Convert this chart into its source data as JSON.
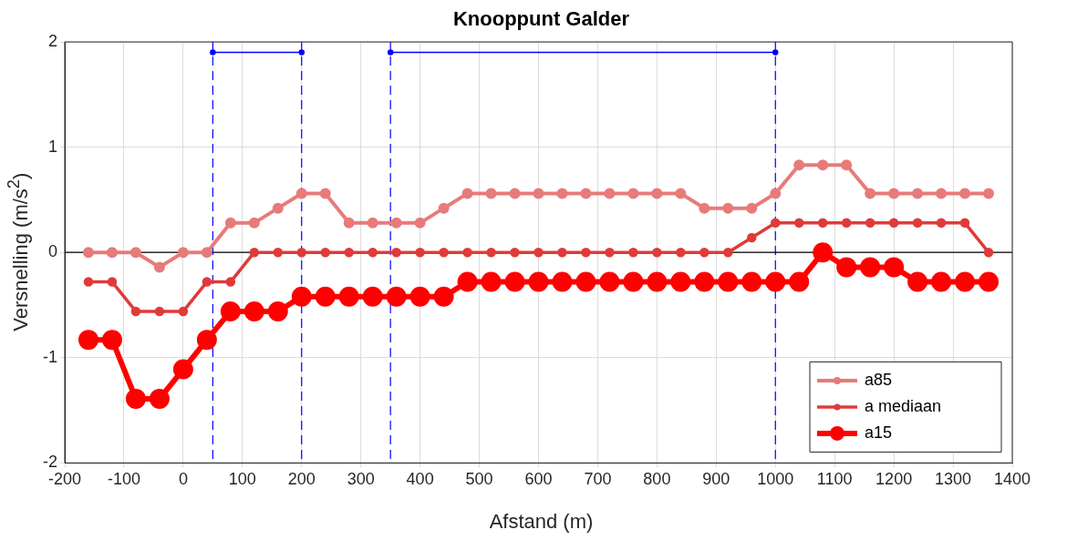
{
  "chart_data": {
    "type": "line",
    "title": "Knooppunt Galder",
    "xlabel": "Afstand (m)",
    "ylabel": "Versnelling (m/s$^{2}$)",
    "x": [
      -160,
      -120,
      -80,
      -40,
      0,
      40,
      80,
      120,
      160,
      200,
      240,
      280,
      320,
      360,
      400,
      440,
      480,
      520,
      560,
      600,
      640,
      680,
      720,
      760,
      800,
      840,
      880,
      920,
      960,
      1000,
      1040,
      1080,
      1120,
      1160,
      1200,
      1240,
      1280,
      1320,
      1360
    ],
    "series": [
      {
        "name": "a85",
        "color": "#e87a7a",
        "values": [
          0,
          0,
          0,
          -0.14,
          0,
          0,
          0.28,
          0.28,
          0.42,
          0.56,
          0.56,
          0.28,
          0.28,
          0.28,
          0.28,
          0.42,
          0.56,
          0.56,
          0.56,
          0.56,
          0.56,
          0.56,
          0.56,
          0.56,
          0.56,
          0.56,
          0.42,
          0.42,
          0.42,
          0.56,
          0.83,
          0.83,
          0.83,
          0.56,
          0.56,
          0.56,
          0.56,
          0.56,
          0.56
        ]
      },
      {
        "name": "a mediaan",
        "color": "#e03a3a",
        "values": [
          -0.28,
          -0.28,
          -0.56,
          -0.56,
          -0.56,
          -0.28,
          -0.28,
          0,
          0,
          0,
          0,
          0,
          0,
          0,
          0,
          0,
          0,
          0,
          0,
          0,
          0,
          0,
          0,
          0,
          0,
          0,
          0,
          0,
          0.14,
          0.28,
          0.28,
          0.28,
          0.28,
          0.28,
          0.28,
          0.28,
          0.28,
          0.28,
          0
        ]
      },
      {
        "name": "a15",
        "color": "#ff0000",
        "values": [
          -0.83,
          -0.83,
          -1.39,
          -1.39,
          -1.11,
          -0.83,
          -0.56,
          -0.56,
          -0.56,
          -0.42,
          -0.42,
          -0.42,
          -0.42,
          -0.42,
          -0.42,
          -0.42,
          -0.28,
          -0.28,
          -0.28,
          -0.28,
          -0.28,
          -0.28,
          -0.28,
          -0.28,
          -0.28,
          -0.28,
          -0.28,
          -0.28,
          -0.28,
          -0.28,
          -0.28,
          0,
          -0.14,
          -0.14,
          -0.14,
          -0.28,
          -0.28,
          -0.28,
          -0.28
        ]
      },
      {
        "color": "#0000ff",
        "x": [
          50,
          200
        ],
        "values": [
          1.9,
          1.9
        ]
      },
      {
        "color": "#0000ff",
        "x": [
          350,
          1000
        ],
        "values": [
          1.9,
          1.9
        ]
      }
    ],
    "ref_lines": [
      {
        "axis": "x",
        "value": 50,
        "color": "#0000ff",
        "line_style": "dashed"
      },
      {
        "axis": "x",
        "value": 200,
        "color": "#0000ff",
        "line_style": "dashed"
      },
      {
        "axis": "x",
        "value": 350,
        "color": "#0000ff",
        "line_style": "dashed"
      },
      {
        "axis": "x",
        "value": 1000,
        "color": "#0000ff",
        "line_style": "dashed"
      },
      {
        "axis": "y",
        "value": 0,
        "color": "#000000",
        "line_style": "solid"
      }
    ],
    "xlim": [
      -200,
      1400
    ],
    "xticks": [
      -200,
      -100,
      0,
      100,
      200,
      300,
      400,
      500,
      600,
      700,
      800,
      900,
      1000,
      1100,
      1200,
      1300,
      1400
    ],
    "ylim": [
      -2,
      2
    ],
    "yticks": [
      -2,
      -1,
      0,
      1,
      2
    ],
    "grid": true,
    "legend": "bottom right",
    "marker": "circle",
    "line_style": "solid"
  }
}
